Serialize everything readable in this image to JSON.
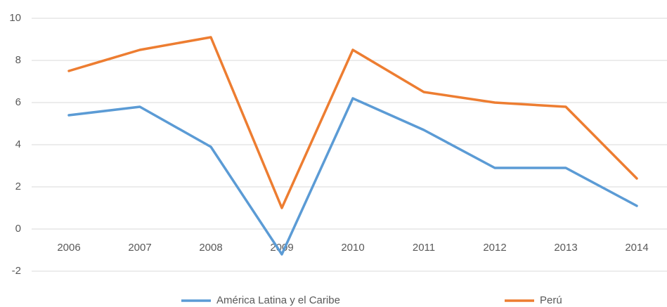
{
  "chart_data": {
    "type": "line",
    "categories": [
      "2006",
      "2007",
      "2008",
      "2009",
      "2010",
      "2011",
      "2012",
      "2013",
      "2014"
    ],
    "series": [
      {
        "name": "América Latina y el Caribe",
        "color": "#5b9bd5",
        "values": [
          5.4,
          5.8,
          3.9,
          -1.2,
          6.2,
          4.7,
          2.9,
          2.9,
          1.1
        ]
      },
      {
        "name": "Perú",
        "color": "#ed7d31",
        "values": [
          7.5,
          8.5,
          9.1,
          1.0,
          8.5,
          6.5,
          6.0,
          5.8,
          2.4
        ]
      }
    ],
    "ylim": [
      -2,
      10
    ],
    "yticks": [
      -2,
      0,
      2,
      4,
      6,
      8,
      10
    ],
    "grid": true,
    "legend": "bottom"
  }
}
